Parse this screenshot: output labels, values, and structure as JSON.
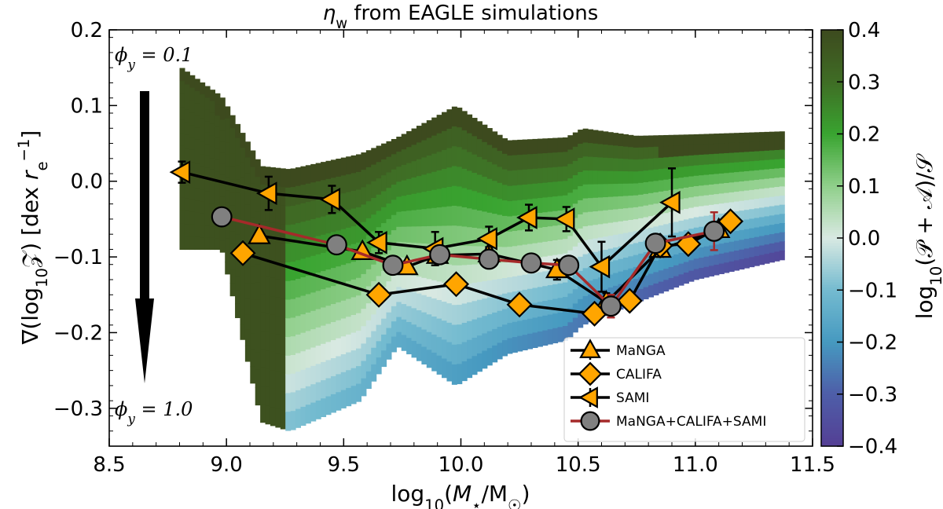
{
  "chart_data": {
    "type": "line",
    "title": "η_w from EAGLE simulations",
    "xlabel": "log₁₀(M⋆/M☉)",
    "ylabel": "∇(log₁₀𝒵)  [dex r_e⁻¹]",
    "xlim": [
      8.5,
      11.5
    ],
    "ylim": [
      -0.35,
      0.2
    ],
    "x_ticks": [
      "8.5",
      "9.0",
      "9.5",
      "10.0",
      "10.5",
      "11.0",
      "11.5"
    ],
    "y_ticks": [
      "−0.3",
      "−0.2",
      "−0.1",
      "0.0",
      "0.1",
      "0.2"
    ],
    "annotations": {
      "top": "ϕ_y = 0.1",
      "bottom": "ϕ_y = 1.0"
    },
    "colorbar": {
      "label": "log₁₀(𝒫 + 𝒜)/𝒮",
      "range": [
        -0.4,
        0.4
      ],
      "ticks": [
        "0.4",
        "0.3",
        "0.2",
        "0.1",
        "0.0",
        "−0.1",
        "−0.2",
        "−0.3",
        "−0.4"
      ],
      "colors": [
        "#3d4a1e",
        "#3f6d25",
        "#39a430",
        "#8fcf8a",
        "#d9e9e2",
        "#74bbd0",
        "#4699c0",
        "#4e5ea8",
        "#543f94"
      ]
    },
    "model_band": {
      "x": [
        8.8,
        8.98,
        9.15,
        9.27,
        9.57,
        9.73,
        9.98,
        10.2,
        10.45,
        10.52,
        10.75,
        11.0,
        11.38
      ],
      "top": [
        0.152,
        0.112,
        0.02,
        0.016,
        0.036,
        0.058,
        0.1,
        0.054,
        0.058,
        0.07,
        0.06,
        0.062,
        0.066
      ],
      "bottom": [
        -0.09,
        -0.09,
        -0.318,
        -0.33,
        -0.29,
        -0.218,
        -0.27,
        -0.228,
        -0.21,
        -0.19,
        -0.16,
        -0.13,
        -0.103
      ],
      "cutoff": [
        -0.09,
        -0.09,
        -0.318,
        -0.318,
        -0.29,
        -0.218,
        -0.27,
        -0.21,
        -0.14,
        -0.12,
        -0.09,
        -0.07,
        -0.05
      ]
    },
    "series": [
      {
        "name": "MaNGA",
        "marker": "triangle-up",
        "color": "#ffa500",
        "line_color": "#000000",
        "x": [
          9.14,
          9.58,
          9.77,
          9.9,
          10.12,
          10.41,
          10.62,
          10.85,
          11.1
        ],
        "y": [
          -0.072,
          -0.093,
          -0.113,
          -0.098,
          -0.096,
          -0.117,
          -0.16,
          -0.09,
          -0.064
        ],
        "err": [
          0.004,
          0.006,
          0.007,
          0.009,
          0.009,
          0.013,
          0.012,
          0.01,
          0.01
        ]
      },
      {
        "name": "CALIFA",
        "marker": "diamond",
        "color": "#ffa500",
        "line_color": "#000000",
        "x": [
          9.07,
          9.65,
          9.98,
          10.25,
          10.57,
          10.72,
          10.85,
          10.97,
          11.15
        ],
        "y": [
          -0.095,
          -0.15,
          -0.136,
          -0.163,
          -0.175,
          -0.158,
          -0.085,
          -0.083,
          -0.053
        ],
        "err": [
          0.004,
          0.006,
          0.006,
          0.006,
          0.008,
          0.008,
          0.01,
          0.01,
          0.01
        ]
      },
      {
        "name": "SAMI",
        "marker": "triangle-left",
        "color": "#ffa500",
        "line_color": "#000000",
        "x": [
          8.81,
          9.18,
          9.45,
          9.65,
          9.89,
          10.12,
          10.29,
          10.45,
          10.6,
          10.9
        ],
        "y": [
          0.012,
          -0.016,
          -0.024,
          -0.081,
          -0.089,
          -0.076,
          -0.048,
          -0.05,
          -0.113,
          -0.028
        ],
        "err": [
          0.014,
          0.022,
          0.018,
          0.014,
          0.022,
          0.016,
          0.017,
          0.016,
          0.033,
          0.045
        ]
      },
      {
        "name": "MaNGA+CALIFA+SAMI",
        "marker": "circle",
        "color": "#808080",
        "line_color": "#a52a2a",
        "x": [
          8.98,
          9.47,
          9.71,
          9.91,
          10.12,
          10.3,
          10.46,
          10.64,
          10.83,
          11.08
        ],
        "y": [
          -0.047,
          -0.084,
          -0.111,
          -0.097,
          -0.103,
          -0.108,
          -0.111,
          -0.165,
          -0.082,
          -0.066
        ],
        "err": [
          0.003,
          0.004,
          0.005,
          0.005,
          0.005,
          0.005,
          0.007,
          0.015,
          0.01,
          0.025
        ]
      }
    ],
    "legend_placement": "lower-right"
  }
}
